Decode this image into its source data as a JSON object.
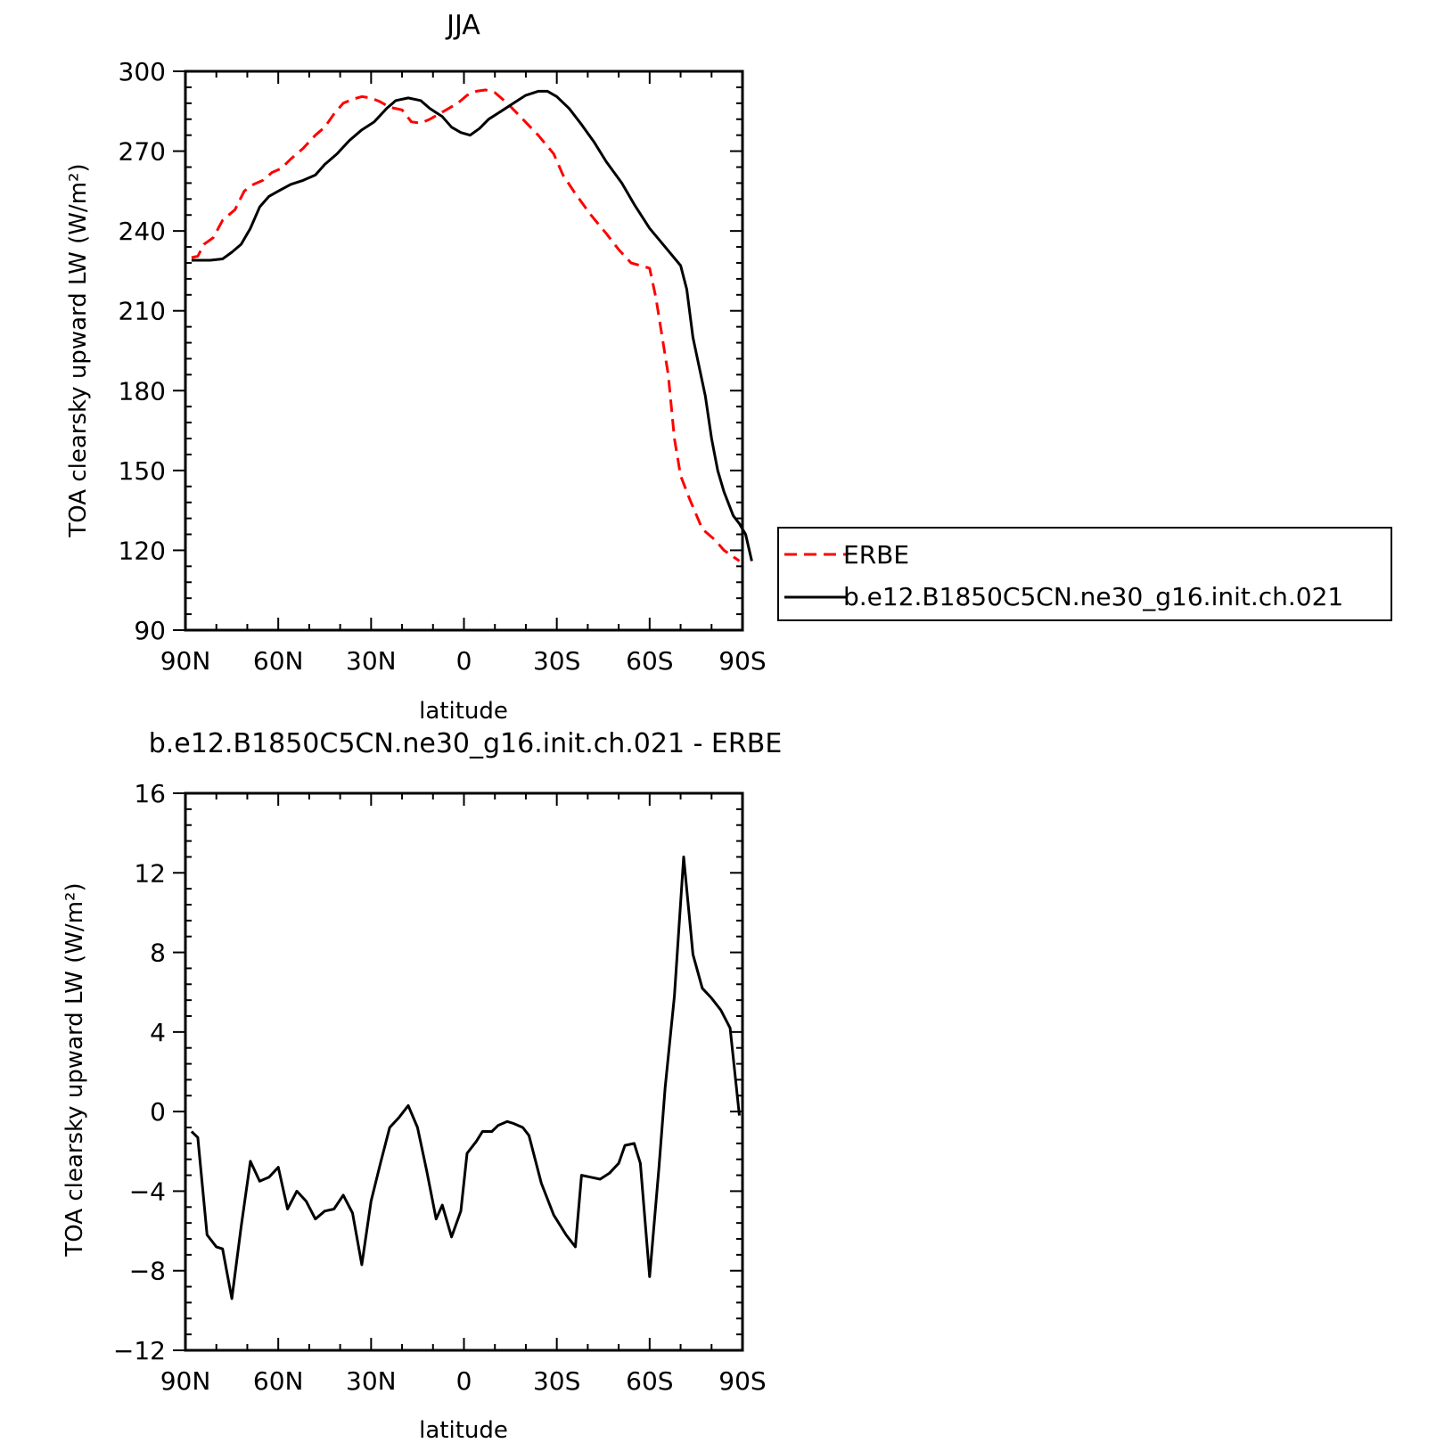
{
  "chart_data": [
    {
      "type": "line",
      "title": "JJA",
      "xlabel": "latitude",
      "ylabel": "TOA clearsky upward LW (W/m²)",
      "xlim": [
        90,
        -90
      ],
      "ylim": [
        90,
        300
      ],
      "xticks": [
        90,
        60,
        30,
        0,
        -30,
        -60,
        -90
      ],
      "xtick_labels": [
        "90N",
        "60N",
        "30N",
        "0",
        "30S",
        "60S",
        "90S"
      ],
      "yticks": [
        90,
        120,
        150,
        180,
        210,
        240,
        270,
        300
      ],
      "ytick_labels": [
        "90",
        "120",
        "150",
        "180",
        "210",
        "240",
        "270",
        "300"
      ],
      "legend_position": "right",
      "series": [
        {
          "name": "ERBE",
          "color": "#ff0000",
          "dash": "dashed",
          "points": [
            [
              88,
              230
            ],
            [
              86,
              230.5
            ],
            [
              84,
              235
            ],
            [
              81,
              237.5
            ],
            [
              78,
              244
            ],
            [
              74,
              248
            ],
            [
              71,
              255
            ],
            [
              68,
              257.5
            ],
            [
              65,
              259
            ],
            [
              62,
              262
            ],
            [
              59,
              263.5
            ],
            [
              56,
              267
            ],
            [
              52,
              271
            ],
            [
              48,
              276
            ],
            [
              45,
              279
            ],
            [
              42,
              284
            ],
            [
              39,
              288
            ],
            [
              36,
              289.5
            ],
            [
              33,
              290.5
            ],
            [
              30,
              290
            ],
            [
              27,
              288.5
            ],
            [
              24,
              286.5
            ],
            [
              20,
              285.5
            ],
            [
              17,
              281
            ],
            [
              14,
              280.5
            ],
            [
              11,
              282
            ],
            [
              8,
              284
            ],
            [
              5,
              286
            ],
            [
              2,
              288
            ],
            [
              -1,
              291
            ],
            [
              -4,
              292.5
            ],
            [
              -7,
              293
            ],
            [
              -10,
              292
            ],
            [
              -14,
              288
            ],
            [
              -19,
              282
            ],
            [
              -24,
              276
            ],
            [
              -29,
              269
            ],
            [
              -32,
              261
            ],
            [
              -36,
              254
            ],
            [
              -41,
              246
            ],
            [
              -46,
              239
            ],
            [
              -50,
              233
            ],
            [
              -54,
              228
            ],
            [
              -60,
              226
            ],
            [
              -62,
              215
            ],
            [
              -66,
              186
            ],
            [
              -68,
              162
            ],
            [
              -70,
              148
            ],
            [
              -73,
              139
            ],
            [
              -77,
              128
            ],
            [
              -81,
              124
            ],
            [
              -84,
              120
            ],
            [
              -89,
              116
            ]
          ]
        },
        {
          "name": "b.e12.B1850C5CN.ne30_g16.init.ch.021",
          "color": "#000000",
          "dash": "solid",
          "points": [
            [
              88,
              229
            ],
            [
              86,
              229
            ],
            [
              82,
              229
            ],
            [
              78,
              229.5
            ],
            [
              75,
              232
            ],
            [
              72,
              235
            ],
            [
              69,
              241
            ],
            [
              66,
              249
            ],
            [
              63,
              253
            ],
            [
              60,
              255
            ],
            [
              56,
              257.5
            ],
            [
              52,
              259
            ],
            [
              48,
              261
            ],
            [
              45,
              265
            ],
            [
              41,
              269
            ],
            [
              37,
              274
            ],
            [
              33,
              278
            ],
            [
              29,
              281
            ],
            [
              25,
              286
            ],
            [
              22,
              289
            ],
            [
              18,
              290
            ],
            [
              14,
              289
            ],
            [
              11,
              286
            ],
            [
              7,
              283
            ],
            [
              4,
              279
            ],
            [
              1,
              277
            ],
            [
              -2,
              276
            ],
            [
              -5,
              278.5
            ],
            [
              -8,
              282
            ],
            [
              -12,
              285
            ],
            [
              -16,
              288
            ],
            [
              -20,
              291
            ],
            [
              -24,
              292.5
            ],
            [
              -27,
              292.5
            ],
            [
              -30,
              290.5
            ],
            [
              -34,
              286
            ],
            [
              -38,
              280
            ],
            [
              -42,
              273.5
            ],
            [
              -46,
              266
            ],
            [
              -51,
              258
            ],
            [
              -55,
              250
            ],
            [
              -60,
              241
            ],
            [
              -65,
              234
            ],
            [
              -70,
              227
            ],
            [
              -72,
              218
            ],
            [
              -74,
              200
            ],
            [
              -78,
              178
            ],
            [
              -80,
              162
            ],
            [
              -82,
              150
            ],
            [
              -84,
              142
            ],
            [
              -87,
              133
            ],
            [
              -89,
              130
            ],
            [
              -91,
              126
            ],
            [
              -93,
              116
            ]
          ]
        }
      ]
    },
    {
      "type": "line",
      "title": "b.e12.B1850C5CN.ne30_g16.init.ch.021 - ERBE",
      "xlabel": "latitude",
      "ylabel": "TOA clearsky upward LW (W/m²)",
      "xlim": [
        90,
        -90
      ],
      "ylim": [
        -12,
        16
      ],
      "xticks": [
        90,
        60,
        30,
        0,
        -30,
        -60,
        -90
      ],
      "xtick_labels": [
        "90N",
        "60N",
        "30N",
        "0",
        "30S",
        "60S",
        "90S"
      ],
      "yticks": [
        -12,
        -8,
        -4,
        0,
        4,
        8,
        12,
        16
      ],
      "ytick_labels": [
        "−12",
        "−8",
        "−4",
        "0",
        "4",
        "8",
        "12",
        "16"
      ],
      "series": [
        {
          "color": "#000000",
          "dash": "solid",
          "points": [
            [
              88,
              -1
            ],
            [
              86,
              -1.3
            ],
            [
              83,
              -6.2
            ],
            [
              80,
              -6.8
            ],
            [
              78,
              -6.9
            ],
            [
              75,
              -9.4
            ],
            [
              72,
              -5.8
            ],
            [
              69,
              -2.5
            ],
            [
              66,
              -3.5
            ],
            [
              63,
              -3.3
            ],
            [
              60,
              -2.8
            ],
            [
              57,
              -4.9
            ],
            [
              54,
              -4
            ],
            [
              51,
              -4.5
            ],
            [
              48,
              -5.4
            ],
            [
              45,
              -5
            ],
            [
              42,
              -4.9
            ],
            [
              39,
              -4.2
            ],
            [
              36,
              -5.1
            ],
            [
              33,
              -7.7
            ],
            [
              30,
              -4.5
            ],
            [
              27,
              -2.6
            ],
            [
              24,
              -0.8
            ],
            [
              21,
              -0.3
            ],
            [
              18,
              0.3
            ],
            [
              15,
              -0.8
            ],
            [
              12,
              -3
            ],
            [
              9,
              -5.4
            ],
            [
              7,
              -4.7
            ],
            [
              4,
              -6.3
            ],
            [
              1,
              -5
            ],
            [
              -1,
              -2.1
            ],
            [
              -4,
              -1.5
            ],
            [
              -6,
              -1
            ],
            [
              -9,
              -1
            ],
            [
              -11,
              -0.7
            ],
            [
              -14,
              -0.5
            ],
            [
              -16,
              -0.6
            ],
            [
              -19,
              -0.8
            ],
            [
              -21,
              -1.2
            ],
            [
              -25,
              -3.6
            ],
            [
              -29,
              -5.2
            ],
            [
              -33,
              -6.2
            ],
            [
              -36,
              -6.8
            ],
            [
              -38,
              -3.2
            ],
            [
              -41,
              -3.3
            ],
            [
              -44,
              -3.4
            ],
            [
              -47,
              -3.1
            ],
            [
              -50,
              -2.6
            ],
            [
              -52,
              -1.7
            ],
            [
              -55,
              -1.6
            ],
            [
              -57,
              -2.6
            ],
            [
              -60,
              -8.3
            ],
            [
              -63,
              -2.8
            ],
            [
              -65,
              1.2
            ],
            [
              -68,
              5.8
            ],
            [
              -71,
              12.8
            ],
            [
              -74,
              7.9
            ],
            [
              -77,
              6.2
            ],
            [
              -80,
              5.7
            ],
            [
              -83,
              5.1
            ],
            [
              -86,
              4.2
            ],
            [
              -89,
              -0.2
            ]
          ]
        }
      ]
    }
  ]
}
